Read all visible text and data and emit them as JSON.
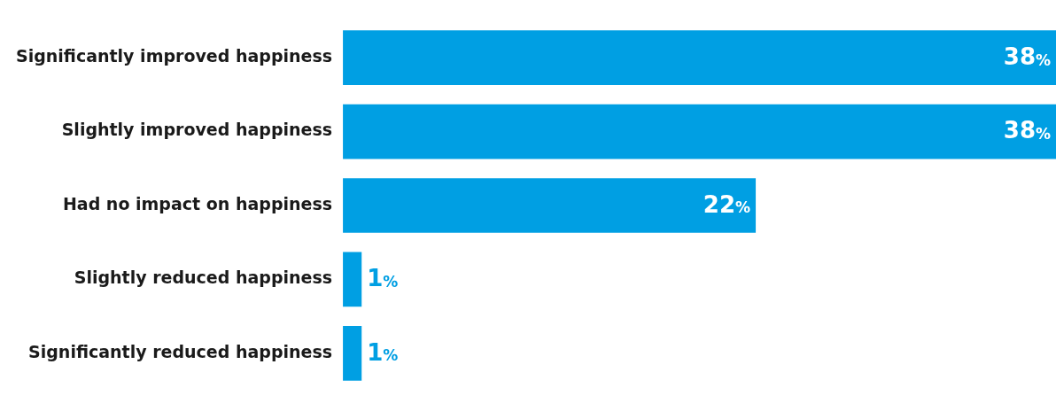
{
  "chart_data": {
    "type": "bar",
    "orientation": "horizontal",
    "grid": false,
    "legend": false,
    "tick_labels": "y",
    "categories": [
      "Significantly improved happiness",
      "Slightly improved happiness",
      "Had no impact on happiness",
      "Slightly reduced happiness",
      "Significantly reduced happiness"
    ],
    "values": [
      38,
      38,
      22,
      1,
      1
    ],
    "value_labels": [
      "38%",
      "38%",
      "22%",
      "1%",
      "1%"
    ],
    "color": "#009fe3"
  }
}
